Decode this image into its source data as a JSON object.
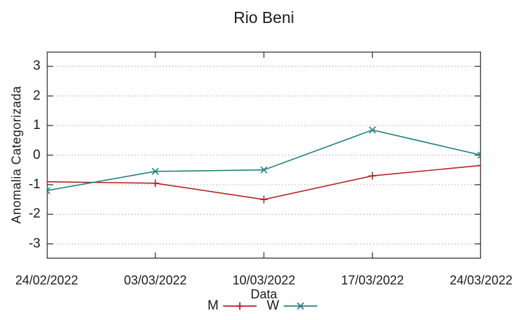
{
  "chart": {
    "title": "Rio Beni",
    "xlabel": "Data",
    "ylabel": "Anomalia Categorizada"
  },
  "chart_data": {
    "type": "line",
    "title": "Rio Beni",
    "xlabel": "Data",
    "ylabel": "Anomalia Categorizada",
    "categories": [
      "24/02/2022",
      "03/03/2022",
      "10/03/2022",
      "17/03/2022",
      "24/03/2022"
    ],
    "series": [
      {
        "name": "M",
        "color": "#b22222",
        "marker": "plus",
        "values": [
          -0.9,
          -0.95,
          -1.5,
          -0.7,
          -0.35
        ]
      },
      {
        "name": "W",
        "color": "#1f8080",
        "marker": "cross",
        "values": [
          -1.2,
          -0.55,
          -0.5,
          0.85,
          0.0
        ]
      }
    ],
    "ylim": [
      -3.5,
      3.5
    ],
    "yticks": [
      -3,
      -2,
      -1,
      0,
      1,
      2,
      3
    ],
    "grid": true,
    "legend_position": "bottom-center",
    "axis_color": "#444444",
    "grid_color": "#b5b5b5"
  }
}
